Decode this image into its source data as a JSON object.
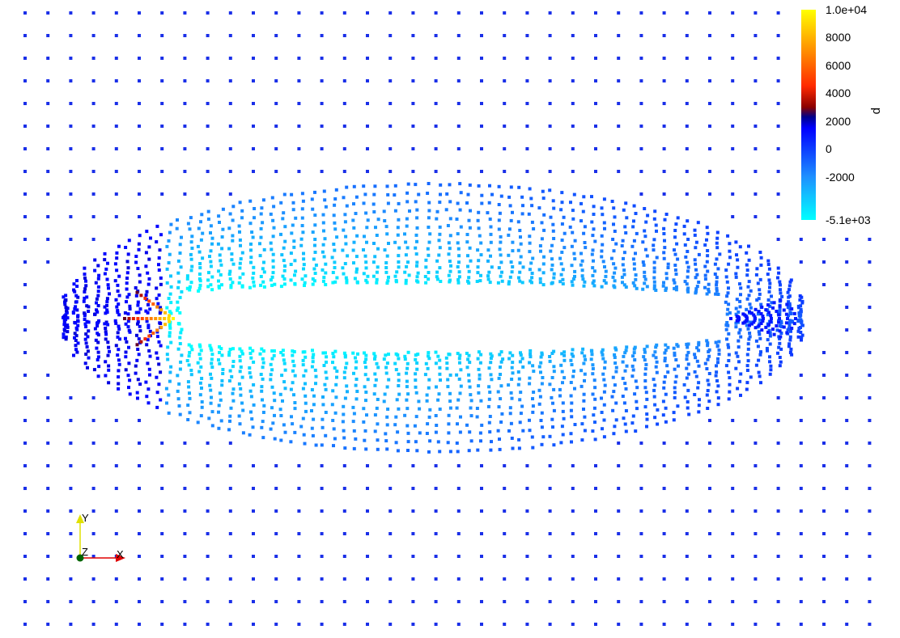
{
  "viewport": {
    "background_color": "#ffffff",
    "representation": "Points"
  },
  "field": {
    "name": "p",
    "range_min_label": "-5.1e+03",
    "range_max_label": "1.0e+04",
    "range": [
      -5100,
      10000
    ],
    "tick_labels": [
      "1.0e+04",
      "8000",
      "6000",
      "4000",
      "2000",
      "0",
      "-2000",
      "-5.1e+03"
    ],
    "tick_values": [
      10000,
      8000,
      6000,
      4000,
      2000,
      0,
      -2000,
      -5100
    ],
    "colormap_stops": [
      {
        "value": -5100,
        "color": "#00ffff"
      },
      {
        "value": -2000,
        "color": "#1e90ff"
      },
      {
        "value": 1500,
        "color": "#0000ff"
      },
      {
        "value": 2300,
        "color": "#00008b"
      },
      {
        "value": 3000,
        "color": "#8b0000"
      },
      {
        "value": 4500,
        "color": "#ff2a00"
      },
      {
        "value": 7000,
        "color": "#ff8c00"
      },
      {
        "value": 10000,
        "color": "#ffff00"
      }
    ]
  },
  "orientation_axes": {
    "x_label": "X",
    "y_label": "Y",
    "z_label": "Z",
    "x_color": "#e00000",
    "y_color": "#e0e000",
    "z_color": "#006400"
  },
  "colors": {
    "far_field_points": "#1a2fe8"
  }
}
